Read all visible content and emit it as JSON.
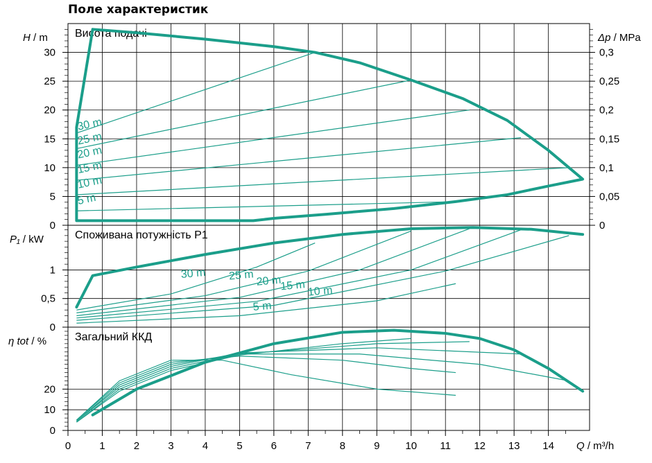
{
  "chart_data": {
    "type": "line",
    "title": "Поле характеристик",
    "x_axis": {
      "label_var": "Q",
      "label_unit": " / m³/h",
      "range": [
        0,
        15.2
      ],
      "ticks": [
        0,
        1,
        2,
        3,
        4,
        5,
        6,
        7,
        8,
        9,
        10,
        11,
        12,
        13,
        14
      ]
    },
    "panels": [
      {
        "id": "head",
        "name": "Висота подачі",
        "y_label_var": "H",
        "y_label_unit": " / m",
        "y_range": [
          0,
          35
        ],
        "y_ticks": [
          0,
          5,
          10,
          15,
          20,
          25,
          30
        ],
        "right_axis": {
          "label_var": "Δp",
          "label_unit": " / MPa",
          "range": [
            0,
            0.35
          ],
          "ticks": [
            0,
            0.05,
            0.1,
            0.15,
            0.2,
            0.25,
            0.3
          ],
          "tick_labels": [
            "0",
            "0,05",
            "0,1",
            "0,15",
            "0,2",
            "0,25",
            "0,3"
          ]
        },
        "envelope": [
          [
            0.25,
            0.8
          ],
          [
            0.25,
            17
          ],
          [
            0.72,
            34
          ],
          [
            2,
            33.4
          ],
          [
            4,
            32.3
          ],
          [
            6,
            31
          ],
          [
            7.2,
            30
          ],
          [
            8.5,
            28.2
          ],
          [
            10,
            25.2
          ],
          [
            11.5,
            22
          ],
          [
            12.8,
            18.2
          ],
          [
            14,
            13
          ],
          [
            15,
            8
          ],
          [
            14,
            6.8
          ],
          [
            12.8,
            5.3
          ],
          [
            11.3,
            4.1
          ],
          [
            9.5,
            2.9
          ],
          [
            7.5,
            1.9
          ],
          [
            6,
            1.2
          ],
          [
            5.4,
            0.8
          ],
          [
            0.25,
            0.8
          ]
        ],
        "series": [
          {
            "label": "30 m",
            "points": [
              [
                0.25,
                16
              ],
              [
                7.2,
                30
              ]
            ]
          },
          {
            "label": "25 m",
            "points": [
              [
                0.25,
                13.3
              ],
              [
                10,
                25.2
              ]
            ]
          },
          {
            "label": "20 m",
            "points": [
              [
                0.25,
                10.4
              ],
              [
                11.7,
                20
              ]
            ]
          },
          {
            "label": "15 m",
            "points": [
              [
                0.25,
                7.8
              ],
              [
                13.2,
                15.2
              ]
            ]
          },
          {
            "label": "10 m",
            "points": [
              [
                0.25,
                5.3
              ],
              [
                14.6,
                10
              ]
            ]
          },
          {
            "label": "5 m",
            "points": [
              [
                0.25,
                2.5
              ],
              [
                11.3,
                4.1
              ]
            ]
          }
        ],
        "series_labels": [
          {
            "text": "30 m",
            "x": 0.3,
            "y": 16.5
          },
          {
            "text": "25 m",
            "x": 0.3,
            "y": 14.0
          },
          {
            "text": "20 m",
            "x": 0.3,
            "y": 11.6
          },
          {
            "text": "15 m",
            "x": 0.3,
            "y": 9.0
          },
          {
            "text": "10 m",
            "x": 0.3,
            "y": 6.4
          },
          {
            "text": "5 m",
            "x": 0.3,
            "y": 3.6
          }
        ]
      },
      {
        "id": "power",
        "name": "Споживана потужність P1",
        "y_label_var": "P₁",
        "y_label_unit": " / kW",
        "y_range": [
          0,
          1.78
        ],
        "y_ticks": [
          0,
          0.5,
          1
        ],
        "y_tick_labels": [
          "0",
          "0,5",
          "1"
        ],
        "envelope": [
          [
            0.25,
            0.35
          ],
          [
            0.72,
            0.9
          ],
          [
            2,
            1.05
          ],
          [
            4,
            1.27
          ],
          [
            6,
            1.47
          ],
          [
            8,
            1.62
          ],
          [
            10,
            1.72
          ],
          [
            11.8,
            1.74
          ],
          [
            13.5,
            1.71
          ],
          [
            15,
            1.62
          ]
        ],
        "series": [
          {
            "label": "30 m",
            "points": [
              [
                0.25,
                0.3
              ],
              [
                3,
                0.58
              ],
              [
                5.5,
                1.05
              ],
              [
                7.2,
                1.47
              ]
            ]
          },
          {
            "label": "25 m",
            "points": [
              [
                0.25,
                0.25
              ],
              [
                4,
                0.55
              ],
              [
                7,
                0.98
              ],
              [
                10,
                1.68
              ]
            ]
          },
          {
            "label": "20 m",
            "points": [
              [
                0.25,
                0.2
              ],
              [
                5,
                0.52
              ],
              [
                8.5,
                1.0
              ],
              [
                11.7,
                1.72
              ]
            ]
          },
          {
            "label": "15 m",
            "points": [
              [
                0.25,
                0.16
              ],
              [
                5.5,
                0.45
              ],
              [
                10,
                1.0
              ],
              [
                13.2,
                1.7
              ]
            ]
          },
          {
            "label": "10 m",
            "points": [
              [
                0.25,
                0.12
              ],
              [
                6,
                0.38
              ],
              [
                11,
                0.98
              ],
              [
                14.6,
                1.6
              ]
            ]
          },
          {
            "label": "5 m",
            "points": [
              [
                0.25,
                0.07
              ],
              [
                5,
                0.2
              ],
              [
                9,
                0.46
              ],
              [
                11.3,
                0.76
              ]
            ]
          }
        ],
        "series_labels": [
          {
            "text": "30 m",
            "x": 3.3,
            "y": 0.86
          },
          {
            "text": "25 m",
            "x": 4.7,
            "y": 0.83
          },
          {
            "text": "20 m",
            "x": 5.5,
            "y": 0.73
          },
          {
            "text": "15 m",
            "x": 6.2,
            "y": 0.65
          },
          {
            "text": "10 m",
            "x": 7.0,
            "y": 0.55
          },
          {
            "text": "5 m",
            "x": 5.4,
            "y": 0.29
          }
        ]
      },
      {
        "id": "efficiency",
        "name": "Загальний ККД",
        "y_label_var": "η tot",
        "y_label_unit": " / %",
        "y_range": [
          0,
          50
        ],
        "y_ticks": [
          0,
          10,
          20
        ],
        "envelope": [
          [
            0.72,
            7.5
          ],
          [
            2,
            20
          ],
          [
            4,
            33
          ],
          [
            6,
            42
          ],
          [
            8,
            47.5
          ],
          [
            9.5,
            48.5
          ],
          [
            11,
            47
          ],
          [
            12,
            44.5
          ],
          [
            13,
            39
          ],
          [
            14,
            30
          ],
          [
            15,
            19
          ]
        ],
        "series": [
          {
            "label": "30 m",
            "points": [
              [
                0.25,
                5
              ],
              [
                1.5,
                24
              ],
              [
                3,
                34
              ],
              [
                4.5,
                34
              ],
              [
                6.5,
                27
              ],
              [
                9,
                20
              ],
              [
                11.3,
                17
              ]
            ]
          },
          {
            "label": "25 m",
            "points": [
              [
                0.25,
                5
              ],
              [
                1.5,
                23
              ],
              [
                3,
                33
              ],
              [
                5,
                36
              ],
              [
                8,
                34
              ],
              [
                10,
                30
              ],
              [
                11.3,
                28
              ]
            ]
          },
          {
            "label": "20 m",
            "points": [
              [
                0.25,
                4.5
              ],
              [
                1.5,
                22
              ],
              [
                3,
                32
              ],
              [
                5,
                37
              ],
              [
                8.5,
                37
              ],
              [
                12,
                32
              ],
              [
                14.6,
                24
              ]
            ]
          },
          {
            "label": "15 m",
            "points": [
              [
                0.25,
                4.5
              ],
              [
                1.5,
                21
              ],
              [
                3,
                31
              ],
              [
                5,
                37.5
              ],
              [
                9,
                40
              ],
              [
                13.2,
                37
              ]
            ]
          },
          {
            "label": "10 m",
            "points": [
              [
                0.25,
                4
              ],
              [
                1.5,
                20
              ],
              [
                3,
                30
              ],
              [
                5,
                37
              ],
              [
                9,
                42
              ],
              [
                11.7,
                43
              ]
            ]
          },
          {
            "label": "5 m",
            "points": [
              [
                0.25,
                4
              ],
              [
                1.5,
                19
              ],
              [
                3,
                29
              ],
              [
                5,
                36.5
              ],
              [
                8,
                42
              ],
              [
                10,
                44.5
              ]
            ]
          }
        ]
      }
    ],
    "colors": {
      "curve": "#1b9e8a",
      "grid": "#000000",
      "text": "#000000",
      "background": "#ffffff"
    }
  }
}
